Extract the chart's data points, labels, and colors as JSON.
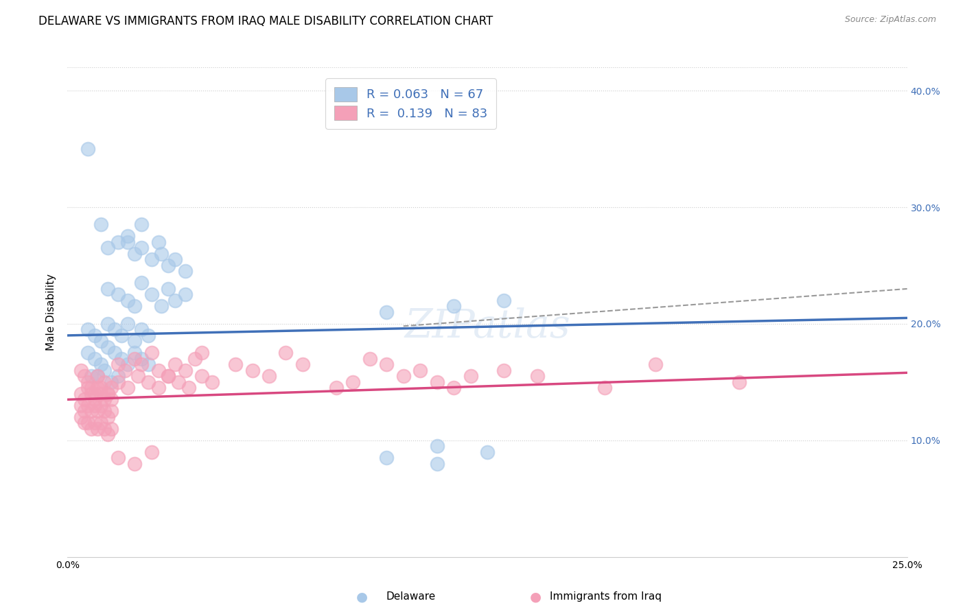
{
  "title": "DELAWARE VS IMMIGRANTS FROM IRAQ MALE DISABILITY CORRELATION CHART",
  "source": "Source: ZipAtlas.com",
  "ylabel": "Male Disability",
  "xmin": 0.0,
  "xmax": 0.25,
  "ymin": 0.0,
  "ymax": 0.42,
  "yticks": [
    0.1,
    0.2,
    0.3,
    0.4
  ],
  "ytick_labels": [
    "10.0%",
    "20.0%",
    "30.0%",
    "40.0%"
  ],
  "blue_color": "#a8c8e8",
  "pink_color": "#f4a0b8",
  "blue_line_color": "#4070b8",
  "pink_line_color": "#d84880",
  "dashed_line_color": "#999999",
  "legend_label_blue": "Delaware",
  "legend_label_pink": "Immigrants from Iraq",
  "text_color": "#4070b8",
  "grid_color": "#cccccc",
  "background_color": "#ffffff",
  "blue_scatter_x": [
    0.006,
    0.01,
    0.018,
    0.022,
    0.027,
    0.012,
    0.015,
    0.018,
    0.02,
    0.022,
    0.025,
    0.028,
    0.03,
    0.032,
    0.035,
    0.012,
    0.015,
    0.018,
    0.02,
    0.022,
    0.025,
    0.028,
    0.03,
    0.032,
    0.035,
    0.006,
    0.008,
    0.01,
    0.012,
    0.014,
    0.016,
    0.018,
    0.02,
    0.022,
    0.024,
    0.006,
    0.008,
    0.01,
    0.012,
    0.014,
    0.016,
    0.018,
    0.02,
    0.022,
    0.024,
    0.007,
    0.009,
    0.011,
    0.013,
    0.015,
    0.095,
    0.115,
    0.13,
    0.11,
    0.125,
    0.095,
    0.11
  ],
  "blue_scatter_y": [
    0.35,
    0.285,
    0.27,
    0.285,
    0.27,
    0.265,
    0.27,
    0.275,
    0.26,
    0.265,
    0.255,
    0.26,
    0.25,
    0.255,
    0.245,
    0.23,
    0.225,
    0.22,
    0.215,
    0.235,
    0.225,
    0.215,
    0.23,
    0.22,
    0.225,
    0.195,
    0.19,
    0.185,
    0.2,
    0.195,
    0.19,
    0.2,
    0.185,
    0.195,
    0.19,
    0.175,
    0.17,
    0.165,
    0.18,
    0.175,
    0.17,
    0.165,
    0.175,
    0.17,
    0.165,
    0.155,
    0.155,
    0.16,
    0.15,
    0.155,
    0.21,
    0.215,
    0.22,
    0.095,
    0.09,
    0.085,
    0.08
  ],
  "pink_scatter_x": [
    0.004,
    0.005,
    0.006,
    0.007,
    0.008,
    0.009,
    0.01,
    0.011,
    0.012,
    0.013,
    0.004,
    0.005,
    0.006,
    0.007,
    0.008,
    0.009,
    0.01,
    0.011,
    0.012,
    0.013,
    0.004,
    0.005,
    0.006,
    0.007,
    0.008,
    0.009,
    0.01,
    0.011,
    0.012,
    0.013,
    0.004,
    0.005,
    0.006,
    0.007,
    0.008,
    0.009,
    0.01,
    0.011,
    0.012,
    0.013,
    0.015,
    0.017,
    0.02,
    0.022,
    0.025,
    0.027,
    0.03,
    0.032,
    0.035,
    0.038,
    0.015,
    0.018,
    0.021,
    0.024,
    0.027,
    0.03,
    0.033,
    0.036,
    0.04,
    0.043,
    0.04,
    0.05,
    0.055,
    0.06,
    0.065,
    0.07,
    0.08,
    0.085,
    0.09,
    0.095,
    0.1,
    0.105,
    0.11,
    0.115,
    0.12,
    0.13,
    0.14,
    0.16,
    0.175,
    0.2,
    0.015,
    0.02,
    0.025
  ],
  "pink_scatter_y": [
    0.16,
    0.155,
    0.15,
    0.145,
    0.14,
    0.155,
    0.145,
    0.15,
    0.14,
    0.145,
    0.14,
    0.135,
    0.145,
    0.14,
    0.135,
    0.145,
    0.14,
    0.135,
    0.14,
    0.135,
    0.13,
    0.125,
    0.13,
    0.125,
    0.13,
    0.125,
    0.13,
    0.125,
    0.12,
    0.125,
    0.12,
    0.115,
    0.115,
    0.11,
    0.115,
    0.11,
    0.115,
    0.11,
    0.105,
    0.11,
    0.165,
    0.16,
    0.17,
    0.165,
    0.175,
    0.16,
    0.155,
    0.165,
    0.16,
    0.17,
    0.15,
    0.145,
    0.155,
    0.15,
    0.145,
    0.155,
    0.15,
    0.145,
    0.155,
    0.15,
    0.175,
    0.165,
    0.16,
    0.155,
    0.175,
    0.165,
    0.145,
    0.15,
    0.17,
    0.165,
    0.155,
    0.16,
    0.15,
    0.145,
    0.155,
    0.16,
    0.155,
    0.145,
    0.165,
    0.15,
    0.085,
    0.08,
    0.09
  ],
  "blue_line_x": [
    0.0,
    0.25
  ],
  "blue_line_y": [
    0.19,
    0.205
  ],
  "pink_line_x": [
    0.0,
    0.25
  ],
  "pink_line_y": [
    0.135,
    0.158
  ],
  "dashed_line_x": [
    0.1,
    0.25
  ],
  "dashed_line_y": [
    0.198,
    0.23
  ]
}
